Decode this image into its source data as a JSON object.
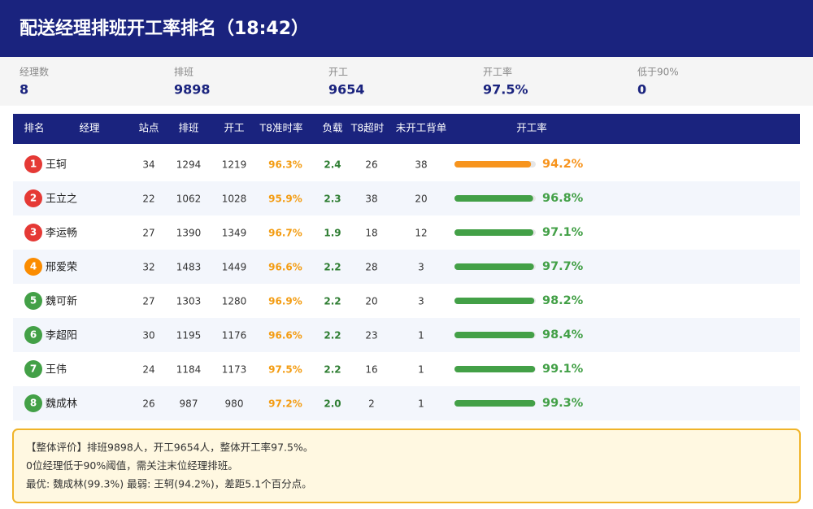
{
  "header": {
    "title": "配送经理排班开工率排名（18:42）"
  },
  "stats": [
    {
      "label": "经理数",
      "value": "8"
    },
    {
      "label": "排班",
      "value": "9898"
    },
    {
      "label": "开工",
      "value": "9654"
    },
    {
      "label": "开工率",
      "value": "97.5%"
    },
    {
      "label": "低于90%",
      "value": "0"
    }
  ],
  "table": {
    "headers": [
      "排名",
      "经理",
      "站点",
      "排班",
      "开工",
      "T8准时率",
      "负载",
      "T8超时",
      "未开工背单",
      "开工率"
    ],
    "bar_range": [
      0,
      100
    ],
    "rows": [
      {
        "rank": "1",
        "name": "王轲",
        "stations": "34",
        "scheduled": "1294",
        "started": "1219",
        "t8_rate": "96.3%",
        "load": "2.4",
        "t8_overtime": "26",
        "unstarted": "38",
        "rate": {
          "value": 94.2,
          "label": "94.2%"
        },
        "badge_color": "#e53935",
        "rate_color": "#f7941d",
        "overtime_color": "#e53935"
      },
      {
        "rank": "2",
        "name": "王立之",
        "stations": "22",
        "scheduled": "1062",
        "started": "1028",
        "t8_rate": "95.9%",
        "load": "2.3",
        "t8_overtime": "38",
        "unstarted": "20",
        "rate": {
          "value": 96.8,
          "label": "96.8%"
        },
        "badge_color": "#e53935",
        "rate_color": "#43a047",
        "overtime_color": "#e53935"
      },
      {
        "rank": "3",
        "name": "李运畅",
        "stations": "27",
        "scheduled": "1390",
        "started": "1349",
        "t8_rate": "96.7%",
        "load": "1.9",
        "t8_overtime": "18",
        "unstarted": "12",
        "rate": {
          "value": 97.1,
          "label": "97.1%"
        },
        "badge_color": "#e53935",
        "rate_color": "#43a047",
        "overtime_color": "#e53935"
      },
      {
        "rank": "4",
        "name": "邢爱荣",
        "stations": "32",
        "scheduled": "1483",
        "started": "1449",
        "t8_rate": "96.6%",
        "load": "2.2",
        "t8_overtime": "28",
        "unstarted": "3",
        "rate": {
          "value": 97.7,
          "label": "97.7%"
        },
        "badge_color": "#fb8c00",
        "rate_color": "#43a047",
        "overtime_color": "#e53935"
      },
      {
        "rank": "5",
        "name": "魏可新",
        "stations": "27",
        "scheduled": "1303",
        "started": "1280",
        "t8_rate": "96.9%",
        "load": "2.2",
        "t8_overtime": "20",
        "unstarted": "3",
        "rate": {
          "value": 98.2,
          "label": "98.2%"
        },
        "badge_color": "#43a047",
        "rate_color": "#43a047",
        "overtime_color": "#e53935"
      },
      {
        "rank": "6",
        "name": "李超阳",
        "stations": "30",
        "scheduled": "1195",
        "started": "1176",
        "t8_rate": "96.6%",
        "load": "2.2",
        "t8_overtime": "23",
        "unstarted": "1",
        "rate": {
          "value": 98.4,
          "label": "98.4%"
        },
        "badge_color": "#43a047",
        "rate_color": "#43a047",
        "overtime_color": "#e53935"
      },
      {
        "rank": "7",
        "name": "王伟",
        "stations": "24",
        "scheduled": "1184",
        "started": "1173",
        "t8_rate": "97.5%",
        "load": "2.2",
        "t8_overtime": "16",
        "unstarted": "1",
        "rate": {
          "value": 99.1,
          "label": "99.1%"
        },
        "badge_color": "#43a047",
        "rate_color": "#43a047",
        "overtime_color": "#e53935"
      },
      {
        "rank": "8",
        "name": "魏成林",
        "stations": "26",
        "scheduled": "987",
        "started": "980",
        "t8_rate": "97.2%",
        "load": "2.0",
        "t8_overtime": "2",
        "unstarted": "1",
        "rate": {
          "value": 99.3,
          "label": "99.3%"
        },
        "badge_color": "#43a047",
        "rate_color": "#43a047",
        "overtime_color": "#f7941d"
      }
    ]
  },
  "summary": {
    "lines": [
      "【整体评价】排班9898人，开工9654人，整体开工率97.5%。",
      "0位经理低于90%阈值，需关注末位经理排班。",
      "最优: 魏成林(99.3%)  最弱: 王轲(94.2%)，差距5.1个百分点。"
    ]
  }
}
